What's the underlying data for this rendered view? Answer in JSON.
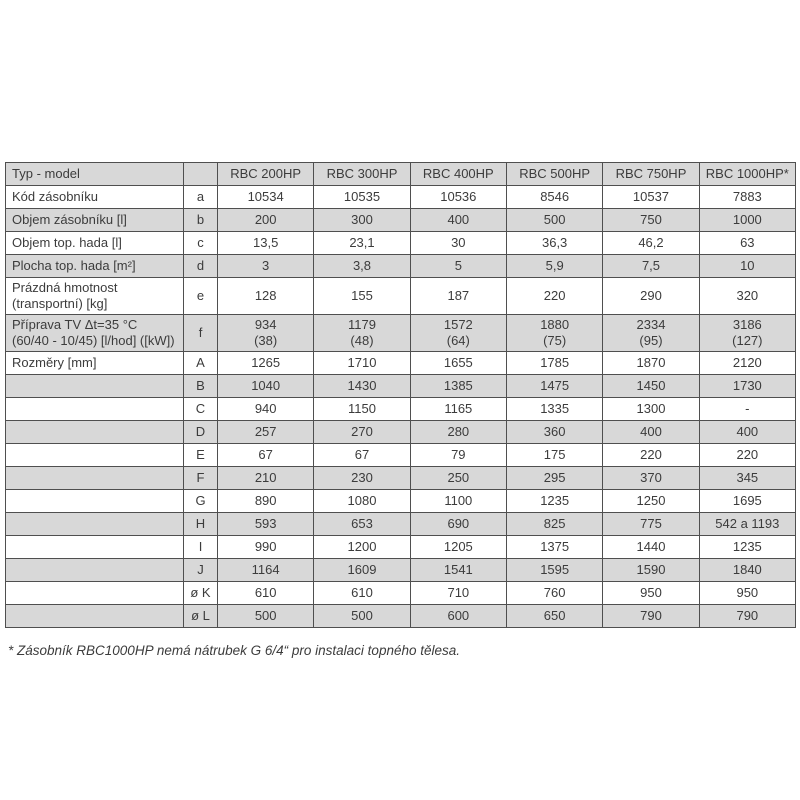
{
  "table": {
    "header": {
      "label": "Typ - model",
      "letter": "",
      "models": [
        "RBC 200HP",
        "RBC 300HP",
        "RBC 400HP",
        "RBC 500HP",
        "RBC 750HP",
        "RBC 1000HP*"
      ]
    },
    "rows": [
      {
        "label": "Kód zásobníku",
        "letter": "a",
        "values": [
          "10534",
          "10535",
          "10536",
          "8546",
          "10537",
          "7883"
        ]
      },
      {
        "label": "Objem zásobníku [l]",
        "letter": "b",
        "values": [
          "200",
          "300",
          "400",
          "500",
          "750",
          "1000"
        ]
      },
      {
        "label": "Objem top. hada [l]",
        "letter": "c",
        "values": [
          "13,5",
          "23,1",
          "30",
          "36,3",
          "46,2",
          "63"
        ]
      },
      {
        "label": "Plocha top. hada [m²]",
        "letter": "d",
        "values": [
          "3",
          "3,8",
          "5",
          "5,9",
          "7,5",
          "10"
        ]
      },
      {
        "label": "Prázdná hmotnost\n(transportní) [kg]",
        "letter": "e",
        "values": [
          "128",
          "155",
          "187",
          "220",
          "290",
          "320"
        ]
      },
      {
        "label": "Příprava TV Δt=35 °C\n(60/40 - 10/45) [l/hod] ([kW])",
        "letter": "f",
        "values": [
          "934\n(38)",
          "1179\n(48)",
          "1572\n(64)",
          "1880\n(75)",
          "2334\n(95)",
          "3186\n(127)"
        ]
      },
      {
        "label": "Rozměry [mm]",
        "letter": "A",
        "values": [
          "1265",
          "1710",
          "1655",
          "1785",
          "1870",
          "2120"
        ]
      },
      {
        "label": "",
        "letter": "B",
        "values": [
          "1040",
          "1430",
          "1385",
          "1475",
          "1450",
          "1730"
        ]
      },
      {
        "label": "",
        "letter": "C",
        "values": [
          "940",
          "1150",
          "1165",
          "1335",
          "1300",
          "-"
        ]
      },
      {
        "label": "",
        "letter": "D",
        "values": [
          "257",
          "270",
          "280",
          "360",
          "400",
          "400"
        ]
      },
      {
        "label": "",
        "letter": "E",
        "values": [
          "67",
          "67",
          "79",
          "175",
          "220",
          "220"
        ]
      },
      {
        "label": "",
        "letter": "F",
        "values": [
          "210",
          "230",
          "250",
          "295",
          "370",
          "345"
        ]
      },
      {
        "label": "",
        "letter": "G",
        "values": [
          "890",
          "1080",
          "1100",
          "1235",
          "1250",
          "1695"
        ]
      },
      {
        "label": "",
        "letter": "H",
        "values": [
          "593",
          "653",
          "690",
          "825",
          "775",
          "542 a 1193"
        ]
      },
      {
        "label": "",
        "letter": "I",
        "values": [
          "990",
          "1200",
          "1205",
          "1375",
          "1440",
          "1235"
        ]
      },
      {
        "label": "",
        "letter": "J",
        "values": [
          "1164",
          "1609",
          "1541",
          "1595",
          "1590",
          "1840"
        ]
      },
      {
        "label": "",
        "letter": "ø K",
        "values": [
          "610",
          "610",
          "710",
          "760",
          "950",
          "950"
        ]
      },
      {
        "label": "",
        "letter": "ø L",
        "values": [
          "500",
          "500",
          "600",
          "650",
          "790",
          "790"
        ]
      }
    ]
  },
  "footnote": "* Zásobník RBC1000HP nemá nátrubek G 6/4“ pro instalaci topného tělesa.",
  "colors": {
    "row_shade": "#d8d8d8",
    "border": "#4f4f4f",
    "text": "#3c3c3c"
  }
}
